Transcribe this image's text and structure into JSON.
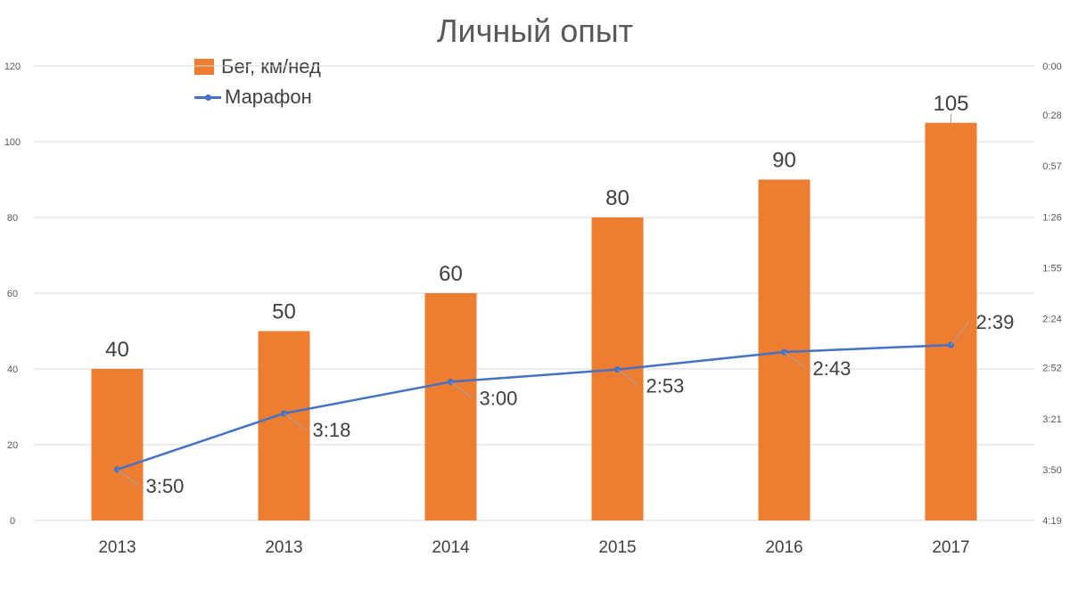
{
  "chart_data": {
    "type": "bar",
    "title": "Личный опыт",
    "categories": [
      "2013",
      "2013",
      "2014",
      "2015",
      "2016",
      "2017"
    ],
    "series": [
      {
        "name": "Бег, км/нед",
        "type": "bar",
        "axis": "left",
        "values": [
          40,
          50,
          60,
          80,
          90,
          105
        ],
        "color": "#ED7D31",
        "labels": [
          "40",
          "50",
          "60",
          "80",
          "90",
          "105"
        ]
      },
      {
        "name": "Марафон",
        "type": "line",
        "axis": "right",
        "values": [
          "3:50",
          "3:18",
          "3:00",
          "2:53",
          "2:43",
          "2:39"
        ],
        "color": "#4472C4"
      }
    ],
    "y_left": {
      "min": 0,
      "max": 120,
      "ticks": [
        "0",
        "20",
        "40",
        "60",
        "80",
        "100",
        "120"
      ]
    },
    "y_right": {
      "reversed": true,
      "min": "0:00",
      "max": "4:19",
      "ticks": [
        "0:00",
        "0:28",
        "0:57",
        "1:26",
        "1:55",
        "2:24",
        "2:52",
        "3:21",
        "3:50",
        "4:19"
      ]
    },
    "grid": true,
    "legend_position": "top-left"
  }
}
